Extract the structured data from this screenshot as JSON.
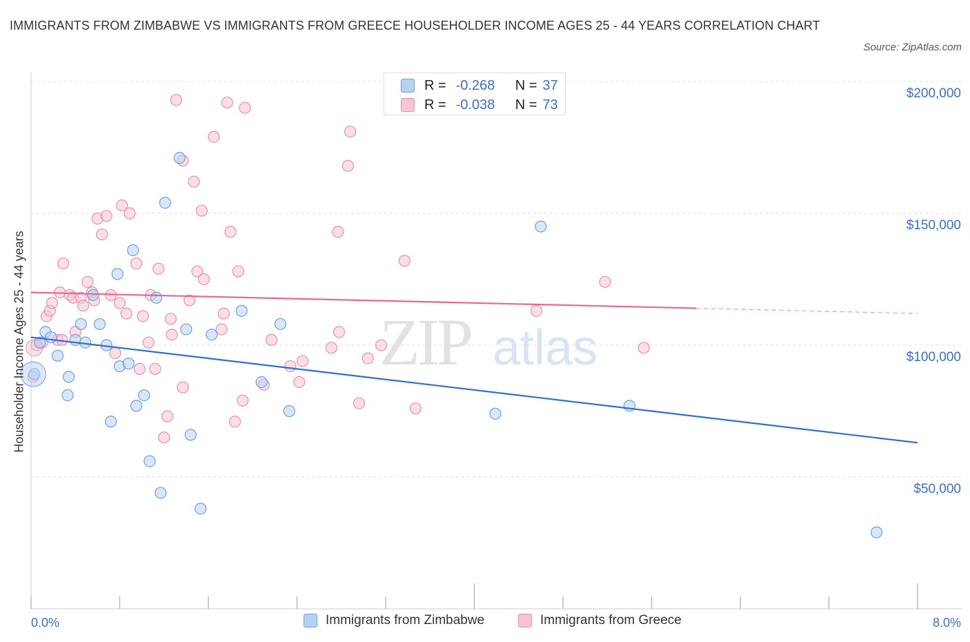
{
  "title": "IMMIGRANTS FROM ZIMBABWE VS IMMIGRANTS FROM GREECE HOUSEHOLDER INCOME AGES 25 - 44 YEARS CORRELATION CHART",
  "source": "Source: ZipAtlas.com",
  "watermark": {
    "zip": "ZIP",
    "atlas": "atlas"
  },
  "legend_top": {
    "zimbabwe": {
      "r_label": "R =",
      "r_value": "-0.268",
      "n_label": "N =",
      "n_value": "37"
    },
    "greece": {
      "r_label": "R =",
      "r_value": "-0.038",
      "n_label": "N =",
      "n_value": "73"
    }
  },
  "colors": {
    "zimbabwe_fill": "#b8d1f3",
    "zimbabwe_stroke": "#6f9fe0",
    "zimbabwe_line": "#2a6fd4",
    "greece_fill": "#f7c4d4",
    "greece_stroke": "#ec8fae",
    "greece_line": "#e8688f",
    "axis_text": "#3a6fd1",
    "grid": "#dddddd"
  },
  "chart_data": {
    "type": "scatter",
    "title": "IMMIGRANTS FROM ZIMBABWE VS IMMIGRANTS FROM GREECE HOUSEHOLDER INCOME AGES 25 - 44 YEARS CORRELATION CHART",
    "xlabel": "",
    "ylabel": "Householder Income Ages 25 - 44 years",
    "xlim": [
      0,
      8.0
    ],
    "ylim": [
      0,
      200000
    ],
    "x_tick_labels": [
      "0.0%",
      "8.0%"
    ],
    "y_tick_labels": [
      {
        "value": 200000,
        "label": "$200,000"
      },
      {
        "value": 150000,
        "label": "$150,000"
      },
      {
        "value": 100000,
        "label": "$100,000"
      },
      {
        "value": 50000,
        "label": "$50,000"
      }
    ],
    "grid": true,
    "legend_position": "bottom",
    "series": [
      {
        "name": "Immigrants from Zimbabwe",
        "points": [
          [
            0.03,
            89000
          ],
          [
            0.08,
            101000
          ],
          [
            0.13,
            105000
          ],
          [
            0.18,
            103000
          ],
          [
            0.24,
            96000
          ],
          [
            0.33,
            81000
          ],
          [
            0.34,
            88000
          ],
          [
            0.4,
            102000
          ],
          [
            0.45,
            108000
          ],
          [
            0.49,
            101000
          ],
          [
            0.56,
            119000
          ],
          [
            0.62,
            108000
          ],
          [
            0.68,
            100000
          ],
          [
            0.72,
            71000
          ],
          [
            0.78,
            127000
          ],
          [
            0.8,
            92000
          ],
          [
            0.88,
            93000
          ],
          [
            0.92,
            136000
          ],
          [
            0.95,
            77000
          ],
          [
            1.02,
            81000
          ],
          [
            1.07,
            56000
          ],
          [
            1.13,
            118000
          ],
          [
            1.17,
            44000
          ],
          [
            1.21,
            154000
          ],
          [
            1.34,
            171000
          ],
          [
            1.4,
            106000
          ],
          [
            1.44,
            66000
          ],
          [
            1.53,
            38000
          ],
          [
            1.63,
            104000
          ],
          [
            1.9,
            113000
          ],
          [
            2.08,
            86000
          ],
          [
            2.25,
            108000
          ],
          [
            2.33,
            75000
          ],
          [
            4.19,
            74000
          ],
          [
            4.6,
            145000
          ],
          [
            5.4,
            77000
          ],
          [
            7.63,
            29000
          ]
        ],
        "trend": {
          "x": [
            0.0,
            8.0
          ],
          "y": [
            103000,
            63000
          ]
        }
      },
      {
        "name": "Immigrants from Greece",
        "points": [
          [
            0.05,
            100000
          ],
          [
            0.1,
            101000
          ],
          [
            0.14,
            111000
          ],
          [
            0.17,
            113000
          ],
          [
            0.19,
            116000
          ],
          [
            0.24,
            102000
          ],
          [
            0.26,
            120000
          ],
          [
            0.29,
            131000
          ],
          [
            0.35,
            119000
          ],
          [
            0.38,
            118000
          ],
          [
            0.4,
            105000
          ],
          [
            0.45,
            118000
          ],
          [
            0.47,
            115000
          ],
          [
            0.51,
            124000
          ],
          [
            0.55,
            120000
          ],
          [
            0.57,
            117000
          ],
          [
            0.6,
            148000
          ],
          [
            0.64,
            142000
          ],
          [
            0.68,
            149000
          ],
          [
            0.72,
            119000
          ],
          [
            0.76,
            97000
          ],
          [
            0.8,
            116000
          ],
          [
            0.82,
            153000
          ],
          [
            0.86,
            112000
          ],
          [
            0.89,
            150000
          ],
          [
            0.95,
            131000
          ],
          [
            0.98,
            91000
          ],
          [
            1.01,
            111000
          ],
          [
            1.06,
            101000
          ],
          [
            1.08,
            119000
          ],
          [
            1.12,
            91000
          ],
          [
            1.15,
            129000
          ],
          [
            1.2,
            65000
          ],
          [
            1.23,
            73000
          ],
          [
            1.26,
            110000
          ],
          [
            1.27,
            104000
          ],
          [
            1.31,
            193000
          ],
          [
            1.37,
            170000
          ],
          [
            1.37,
            84000
          ],
          [
            1.43,
            117000
          ],
          [
            1.47,
            162000
          ],
          [
            1.5,
            128000
          ],
          [
            1.54,
            151000
          ],
          [
            1.56,
            125000
          ],
          [
            1.65,
            179000
          ],
          [
            1.72,
            106000
          ],
          [
            1.74,
            112000
          ],
          [
            1.77,
            192000
          ],
          [
            1.8,
            143000
          ],
          [
            1.84,
            71000
          ],
          [
            1.87,
            128000
          ],
          [
            1.91,
            79000
          ],
          [
            1.93,
            190000
          ],
          [
            2.17,
            102000
          ],
          [
            2.34,
            92000
          ],
          [
            2.42,
            86000
          ],
          [
            2.45,
            94000
          ],
          [
            2.71,
            99000
          ],
          [
            2.77,
            143000
          ],
          [
            2.78,
            105000
          ],
          [
            2.86,
            168000
          ],
          [
            2.88,
            181000
          ],
          [
            2.96,
            78000
          ],
          [
            3.04,
            95000
          ],
          [
            3.16,
            100000
          ],
          [
            3.37,
            132000
          ],
          [
            3.47,
            76000
          ],
          [
            4.56,
            113000
          ],
          [
            5.18,
            124000
          ],
          [
            5.53,
            99000
          ],
          [
            2.1,
            85000
          ],
          [
            0.28,
            102000
          ],
          [
            0.02,
            88000
          ]
        ],
        "trend": {
          "x": [
            0.0,
            6.0
          ],
          "y": [
            120000,
            114000
          ]
        },
        "trend_dashed": {
          "x": [
            6.0,
            8.0
          ],
          "y": [
            114000,
            112000
          ]
        }
      }
    ]
  },
  "legend_bottom": {
    "zimbabwe": "Immigrants from Zimbabwe",
    "greece": "Immigrants from Greece"
  }
}
